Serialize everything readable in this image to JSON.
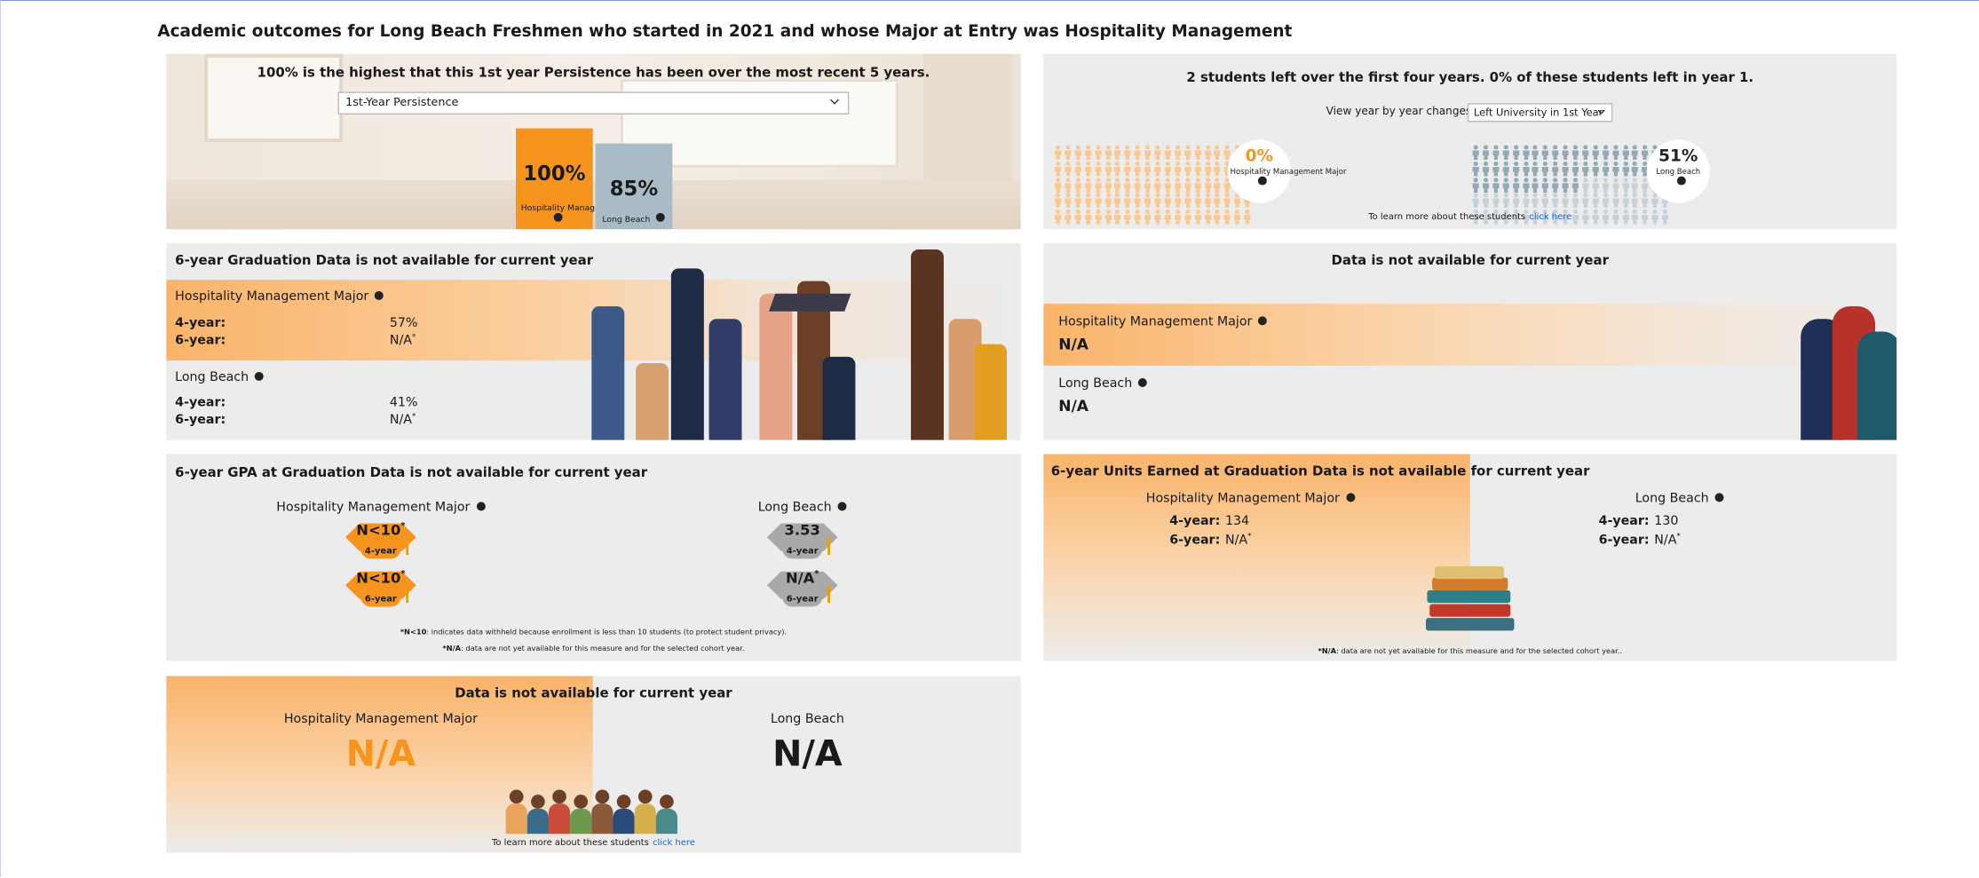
{
  "header": {
    "title": "Academic outcomes for Long Beach Freshmen who started in 2021 and whose Major at Entry was Hospitality Management"
  },
  "persistence": {
    "headline": "100% is the highest that this 1st year Persistence has been over the most recent 5 years.",
    "dropdown": "1st-Year Persistence",
    "bars": [
      {
        "name": "Hospitality Management Major",
        "value": 100,
        "label": "100%"
      },
      {
        "name": "Long Beach",
        "value": 85,
        "label": "85%"
      }
    ]
  },
  "left": {
    "headline": "2 students left over the first four years. 0% of these students left in year 1.",
    "prompt": "View year by year changes:",
    "dropdown": "Left University in 1st Year",
    "groups": [
      {
        "name": "Hospitality Management Major",
        "value": 0,
        "label": "0%"
      },
      {
        "name": "Long Beach",
        "value": 51,
        "label": "51%"
      }
    ],
    "note": "To learn more about these students",
    "link": "click here"
  },
  "graduation": {
    "headline": "6-year Graduation Data is not available for current year",
    "groups": [
      {
        "name": "Hospitality Management Major",
        "rows": [
          {
            "label": "4-year:",
            "value": "57%"
          },
          {
            "label": "6-year:",
            "value": "N/A",
            "sup": "*"
          }
        ]
      },
      {
        "name": "Long Beach",
        "rows": [
          {
            "label": "4-year:",
            "value": "41%"
          },
          {
            "label": "6-year:",
            "value": "N/A",
            "sup": "*"
          }
        ]
      }
    ]
  },
  "graduation_other": {
    "headline": "Data is not available for current year",
    "groups": [
      {
        "name": "Hospitality Management Major",
        "value": "N/A"
      },
      {
        "name": "Long Beach",
        "value": "N/A"
      }
    ]
  },
  "gpa": {
    "headline": "6-year GPA at Graduation Data is not available for current year",
    "groups": [
      {
        "name": "Hospitality Management Major",
        "caps": [
          {
            "value": "N<10",
            "sup": "*",
            "year": "4-year"
          },
          {
            "value": "N<10",
            "sup": "*",
            "year": "6-year"
          }
        ]
      },
      {
        "name": "Long Beach",
        "caps": [
          {
            "value": 3.53,
            "year": "4-year"
          },
          {
            "value": "N/A",
            "sup": "*",
            "year": "6-year"
          }
        ]
      }
    ],
    "notes": [
      {
        "term": "*N<10",
        "text": ": indicates data withheld because enrollment is less than 10 students (to protect student privacy)."
      },
      {
        "term": "*N/A",
        "text": ": data are not yet available for this measure and for the selected cohort year."
      }
    ]
  },
  "units": {
    "headline": "6-year Units Earned at Graduation Data is not available for current year",
    "groups": [
      {
        "name": "Hospitality Management Major",
        "rows": [
          {
            "label": "4-year:",
            "value": 134
          },
          {
            "label": "6-year:",
            "value": "N/A",
            "sup": "*"
          }
        ]
      },
      {
        "name": "Long Beach",
        "rows": [
          {
            "label": "4-year:",
            "value": 130
          },
          {
            "label": "6-year:",
            "value": "N/A",
            "sup": "*"
          }
        ]
      }
    ],
    "note": {
      "term": "*N/A",
      "text": ": data are not yet available for this measure and for the selected cohort year.."
    }
  },
  "last": {
    "headline": "Data is not available for current year",
    "groups": [
      {
        "name": "Hospitality Management Major",
        "value": "N/A"
      },
      {
        "name": "Long Beach",
        "value": "N/A"
      }
    ],
    "note": "To learn more about these students",
    "link": "click here"
  }
}
